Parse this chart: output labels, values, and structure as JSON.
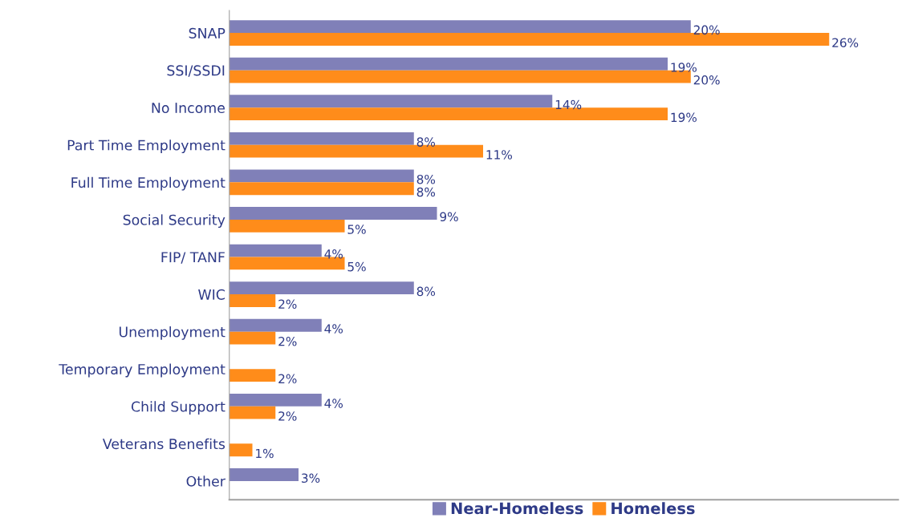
{
  "chart_data": {
    "type": "bar",
    "orientation": "horizontal",
    "categories": [
      "SNAP",
      "SSI/SSDI",
      "No Income",
      "Part Time Employment",
      "Full Time Employment",
      "Social Security",
      "FIP/ TANF",
      "WIC",
      "Unemployment",
      "Temporary Employment",
      "Child Support",
      "Veterans Benefits",
      "Other"
    ],
    "series": [
      {
        "name": "Near-Homeless",
        "color": "#8080b8",
        "values": [
          20,
          19,
          14,
          8,
          8,
          9,
          4,
          8,
          4,
          null,
          4,
          null,
          3
        ],
        "value_labels": [
          "20%",
          "19%",
          "14%",
          "8%",
          "8%",
          "9%",
          "4%",
          "8%",
          "4%",
          null,
          "4%",
          null,
          "3%"
        ]
      },
      {
        "name": "Homeless",
        "color": "#ff8c1a",
        "values": [
          26,
          20,
          19,
          11,
          8,
          5,
          5,
          2,
          2,
          2,
          2,
          1,
          null
        ],
        "value_labels": [
          "26%",
          "20%",
          "19%",
          "11%",
          "8%",
          "5%",
          "5%",
          "2%",
          "2%",
          "2%",
          "2%",
          "1%",
          null
        ]
      }
    ],
    "tick_labels": "y",
    "legend": "bottom"
  }
}
